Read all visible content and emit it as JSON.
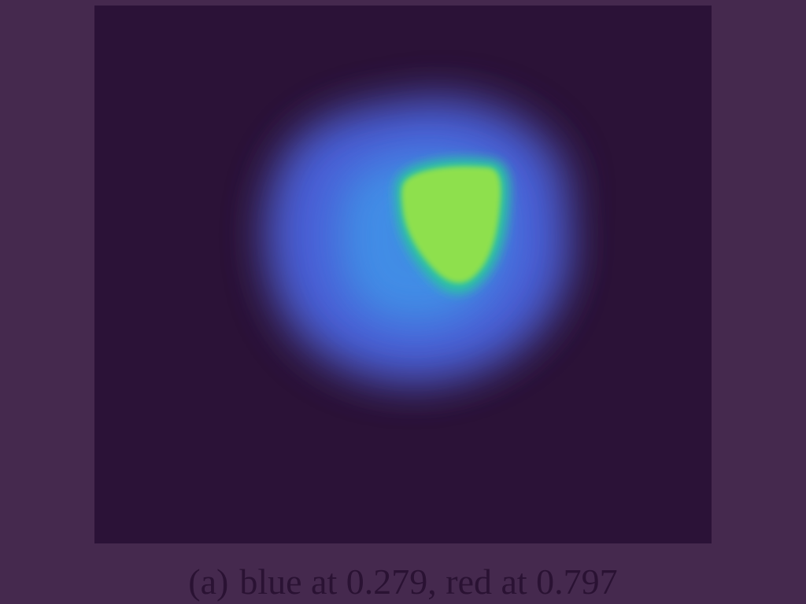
{
  "figure": {
    "caption_label": "(a)",
    "caption_text": "blue at 0.279, red at 0.797",
    "colors": {
      "page_background": "#45294e",
      "panel_background": "#2b1237",
      "outer_blob": "#4b63d8",
      "inner_blob": "#3f95e8",
      "hotspot": "#8ee04e",
      "hotspot_edge": "#2dc0a0",
      "caption_text": "#2a1233"
    }
  }
}
